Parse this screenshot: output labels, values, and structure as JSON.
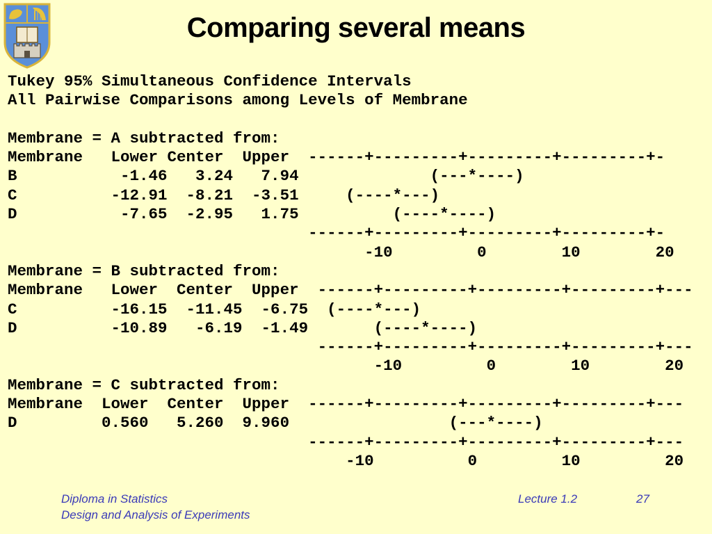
{
  "title": "Comparing several means",
  "output_lines": [
    "Tukey 95% Simultaneous Confidence Intervals",
    "All Pairwise Comparisons among Levels of Membrane",
    "",
    "Membrane = A subtracted from:",
    "Membrane   Lower Center  Upper  ------+---------+---------+---------+-",
    "B           -1.46   3.24   7.94              (---*----)",
    "C          -12.91  -8.21  -3.51     (----*---)",
    "D           -7.65  -2.95   1.75          (----*----)",
    "                                ------+---------+---------+---------+-",
    "                                      -10         0        10        20",
    "Membrane = B subtracted from:",
    "Membrane   Lower  Center  Upper  ------+---------+---------+---------+---",
    "C          -16.15  -11.45  -6.75  (----*---)",
    "D          -10.89   -6.19  -1.49       (----*----)",
    "                                 ------+---------+---------+---------+---",
    "                                       -10         0        10        20",
    "Membrane = C subtracted from:",
    "Membrane  Lower  Center  Upper  ------+---------+---------+---------+---",
    "D         0.560   5.260  9.960                 (---*----)",
    "                                ------+---------+---------+---------+---",
    "                                    -10          0         10         20"
  ],
  "footer": {
    "course": "Diploma in Statistics",
    "module": "Design and Analysis of Experiments",
    "lecture": "Lecture 1.2",
    "page": "27"
  },
  "colors": {
    "background": "#ffffcc",
    "footer_text": "#3a3ab8",
    "crest_blue": "#5a8fd8",
    "crest_gold": "#e8c23a"
  }
}
